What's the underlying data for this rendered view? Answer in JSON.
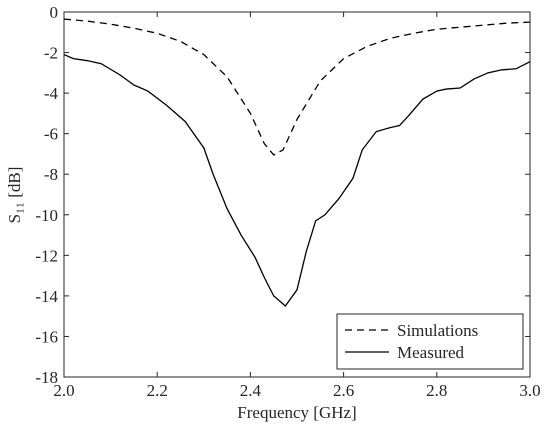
{
  "chart_data": {
    "type": "line",
    "xlabel": "Frequency [GHz]",
    "ylabel": "S₁₁ [dB]",
    "xlim": [
      2.0,
      3.0
    ],
    "ylim": [
      -18,
      0
    ],
    "xticks": [
      {
        "value": 2,
        "label": "2.0"
      },
      2.2,
      2.4,
      2.6,
      2.8,
      {
        "value": 3,
        "label": "3.0"
      }
    ],
    "yticks": [
      0,
      -2,
      -4,
      -6,
      -8,
      -10,
      -12,
      -14,
      -16,
      -18
    ],
    "legend": "lower right",
    "series": [
      {
        "name": "Simulations",
        "color": "#000000",
        "dash": true,
        "x": [
          2.0,
          2.05,
          2.1,
          2.15,
          2.2,
          2.25,
          2.3,
          2.35,
          2.4,
          2.43,
          2.45,
          2.47,
          2.5,
          2.55,
          2.6,
          2.65,
          2.7,
          2.75,
          2.8,
          2.85,
          2.9,
          2.95,
          3.0
        ],
        "values": [
          -0.35,
          -0.45,
          -0.6,
          -0.8,
          -1.05,
          -1.45,
          -2.1,
          -3.2,
          -5.0,
          -6.5,
          -7.05,
          -6.8,
          -5.3,
          -3.4,
          -2.3,
          -1.7,
          -1.3,
          -1.05,
          -0.85,
          -0.75,
          -0.65,
          -0.55,
          -0.5
        ]
      },
      {
        "name": "Measured",
        "color": "#000000",
        "dash": false,
        "x": [
          2.0,
          2.02,
          2.05,
          2.08,
          2.12,
          2.15,
          2.18,
          2.22,
          2.26,
          2.3,
          2.32,
          2.35,
          2.38,
          2.41,
          2.43,
          2.45,
          2.475,
          2.5,
          2.52,
          2.54,
          2.56,
          2.59,
          2.62,
          2.64,
          2.67,
          2.7,
          2.72,
          2.74,
          2.77,
          2.8,
          2.82,
          2.85,
          2.88,
          2.91,
          2.94,
          2.97,
          3.0
        ],
        "values": [
          -2.1,
          -2.3,
          -2.4,
          -2.55,
          -3.1,
          -3.6,
          -3.9,
          -4.6,
          -5.4,
          -6.7,
          -8.0,
          -9.7,
          -11.0,
          -12.1,
          -13.1,
          -14.0,
          -14.5,
          -13.7,
          -11.8,
          -10.3,
          -10.0,
          -9.2,
          -8.2,
          -6.8,
          -5.9,
          -5.7,
          -5.6,
          -5.1,
          -4.3,
          -3.9,
          -3.8,
          -3.75,
          -3.3,
          -3.0,
          -2.85,
          -2.8,
          -2.45
        ]
      }
    ]
  }
}
